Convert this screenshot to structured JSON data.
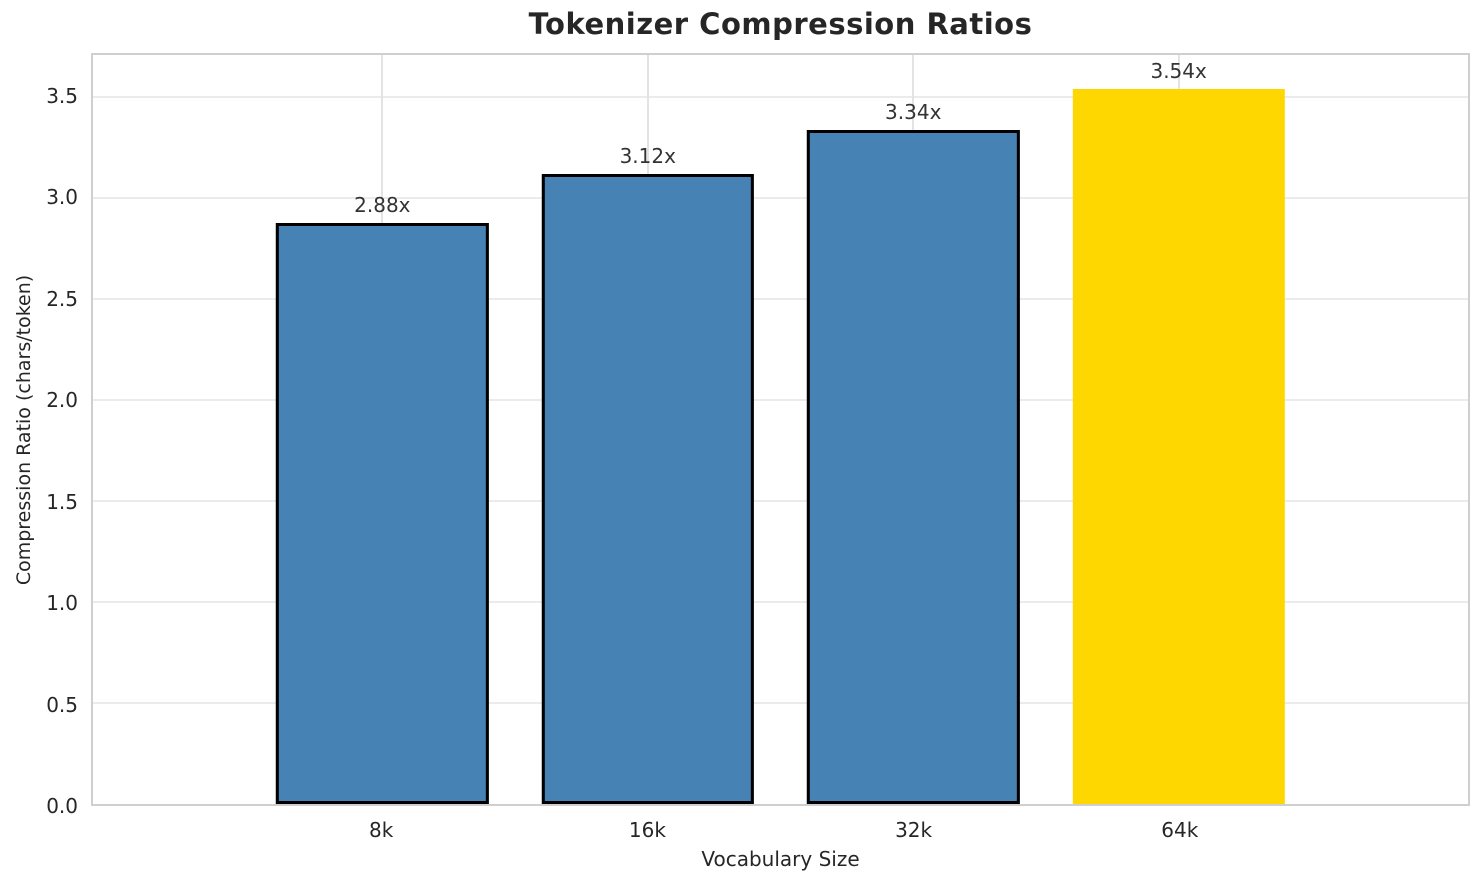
{
  "chart_data": {
    "type": "bar",
    "title": "Tokenizer Compression Ratios",
    "xlabel": "Vocabulary Size",
    "ylabel": "Compression Ratio (chars/token)",
    "categories": [
      "8k",
      "16k",
      "32k",
      "64k"
    ],
    "values": [
      2.88,
      3.12,
      3.34,
      3.54
    ],
    "bar_labels": [
      "2.88x",
      "3.12x",
      "3.34x",
      "3.54x"
    ],
    "ylim": [
      0,
      3.71
    ],
    "yticks": [
      0,
      0.5,
      1.0,
      1.5,
      2.0,
      2.5,
      3.0,
      3.5
    ],
    "ytick_labels": [
      "0.0",
      "0.5",
      "1.0",
      "1.5",
      "2.0",
      "2.5",
      "3.0",
      "3.5"
    ],
    "grid": true,
    "legend_position": "none",
    "bar_colors": [
      "#4682b4",
      "#4682b4",
      "#4682b4",
      "#ffd700"
    ],
    "bar_edge_colors": [
      "#000000",
      "#000000",
      "#000000",
      "none"
    ],
    "highlight_index": 3
  },
  "colors": {
    "bar_blue": "#4682b4",
    "bar_gold": "#ffd700",
    "grid_line": "#ebebeb",
    "spine": "#cfcfcf",
    "text": "#262626",
    "value_label": "#333333"
  }
}
